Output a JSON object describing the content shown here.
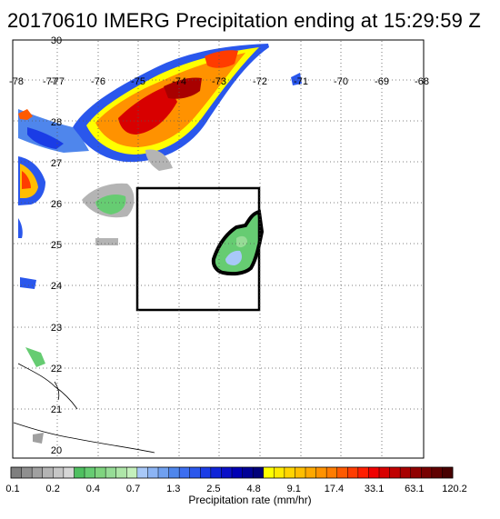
{
  "title": "20170610 IMERG Precipitation ending at 15:29:59 Z",
  "map": {
    "lon_ticks": [
      "-78",
      "-77",
      "-77",
      "-76",
      "-75",
      "-74",
      "-73",
      "-72",
      "-71",
      "-70",
      "-69",
      "-68"
    ],
    "lat_ticks": [
      "30",
      "28",
      "27",
      "26",
      "25",
      "24",
      "23",
      "22",
      "21",
      "20"
    ]
  },
  "colorbar": {
    "tick_labels": [
      "0.1",
      "0.2",
      "0.4",
      "0.7",
      "1.3",
      "2.5",
      "4.8",
      "9.1",
      "17.4",
      "33.1",
      "63.1",
      "120.2"
    ],
    "label": "Precipitation rate (mm/hr)",
    "colors": [
      "#7f7f7f",
      "#8f8f8f",
      "#a0a0a0",
      "#b4b4b4",
      "#c6c6c6",
      "#d6d6d6",
      "#4fbf60",
      "#66cc72",
      "#7fd47f",
      "#96dc96",
      "#aee6a8",
      "#c4f0bc",
      "#a8c8f8",
      "#8cb4f4",
      "#70a0f0",
      "#4f86ec",
      "#3c6ef0",
      "#2a57ec",
      "#1a3ce6",
      "#0f24d8",
      "#0a10c8",
      "#0000b4",
      "#000096",
      "#00007a",
      "#ffff00",
      "#ffea00",
      "#ffd400",
      "#ffbe00",
      "#ffa800",
      "#ff9200",
      "#ff7c00",
      "#ff5a00",
      "#ff3c00",
      "#ff1e00",
      "#f00000",
      "#d80000",
      "#c00000",
      "#a80000",
      "#900000",
      "#780000",
      "#600000",
      "#480000"
    ]
  }
}
